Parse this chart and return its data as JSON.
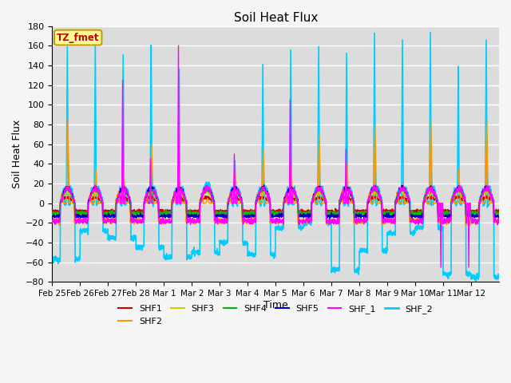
{
  "title": "Soil Heat Flux",
  "xlabel": "Time",
  "ylabel": "Soil Heat Flux",
  "ylim": [
    -80,
    180
  ],
  "yticks": [
    -80,
    -60,
    -40,
    -20,
    0,
    20,
    40,
    60,
    80,
    100,
    120,
    140,
    160,
    180
  ],
  "series": {
    "SHF1": {
      "color": "#cc0000",
      "lw": 1.0
    },
    "SHF2": {
      "color": "#ff9900",
      "lw": 1.0
    },
    "SHF3": {
      "color": "#cccc00",
      "lw": 1.0
    },
    "SHF4": {
      "color": "#00bb00",
      "lw": 1.0
    },
    "SHF5": {
      "color": "#0000cc",
      "lw": 1.0
    },
    "SHF_1": {
      "color": "#ff00ff",
      "lw": 1.0
    },
    "SHF_2": {
      "color": "#00ccff",
      "lw": 1.2
    }
  },
  "annotation_text": "TZ_fmet",
  "annotation_bg": "#ffff99",
  "annotation_border": "#cc9900",
  "annotation_fg": "#cc0000",
  "background_color": "#dcdcdc",
  "x_tick_labels": [
    "Feb 25",
    "Feb 26",
    "Feb 27",
    "Feb 28",
    "Mar 1",
    "Mar 2",
    "Mar 3",
    "Mar 4",
    "Mar 5",
    "Mar 6",
    "Mar 7",
    "Mar 8",
    "Mar 9",
    "Mar 10",
    "Mar 11",
    "Mar 12"
  ],
  "grid_color": "#ffffff",
  "grid_lw": 1.0,
  "cyan_day_peaks": [
    160,
    160,
    148,
    160,
    135,
    0,
    45,
    140,
    157,
    158,
    152,
    175,
    165,
    178,
    140,
    165
  ],
  "cyan_day_troughs": [
    -57,
    -28,
    -35,
    -45,
    -55,
    -50,
    -40,
    -52,
    -25,
    -20,
    -68,
    -48,
    -30,
    -25,
    -72,
    -75
  ],
  "orange_day_peaks": [
    85,
    35,
    35,
    60,
    30,
    5,
    30,
    55,
    35,
    70,
    40,
    80,
    20,
    85,
    35,
    85
  ],
  "magenta_day_peaks": [
    0,
    0,
    125,
    45,
    160,
    0,
    50,
    0,
    105,
    0,
    55,
    0,
    0,
    0,
    0,
    0
  ],
  "magenta_day_troughs": [
    0,
    0,
    0,
    0,
    0,
    0,
    0,
    0,
    0,
    0,
    0,
    0,
    0,
    -65,
    -65,
    0
  ]
}
